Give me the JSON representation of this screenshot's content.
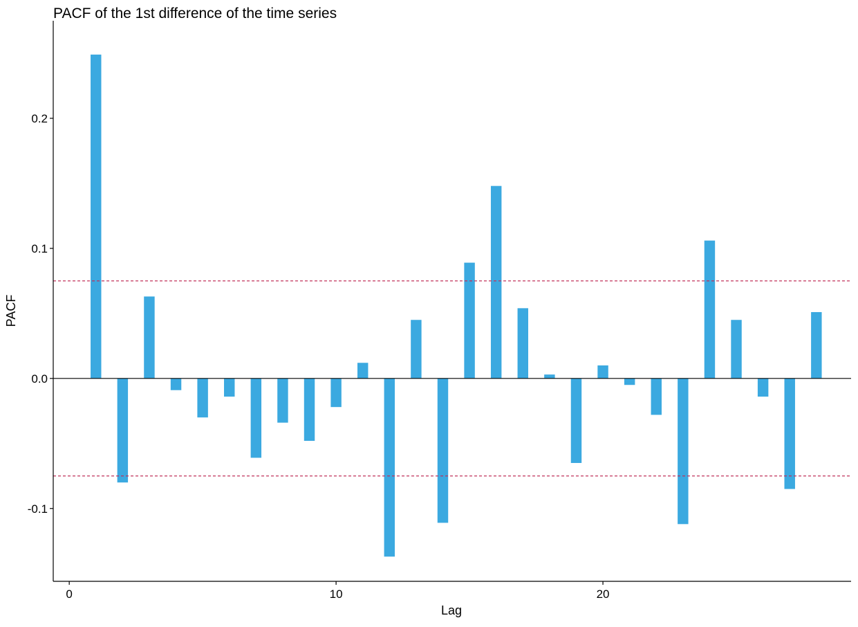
{
  "chart_data": {
    "type": "bar",
    "title": "PACF of the 1st difference of the time series",
    "xlabel": "Lag",
    "ylabel": "PACF",
    "x": [
      1,
      2,
      3,
      4,
      5,
      6,
      7,
      8,
      9,
      10,
      11,
      12,
      13,
      14,
      15,
      16,
      17,
      18,
      19,
      20,
      21,
      22,
      23,
      24,
      25,
      26,
      27,
      28
    ],
    "values": [
      0.249,
      -0.08,
      0.063,
      -0.009,
      -0.03,
      -0.014,
      -0.061,
      -0.034,
      -0.048,
      -0.022,
      0.012,
      -0.137,
      0.045,
      -0.111,
      0.089,
      0.148,
      0.054,
      0.003,
      -0.065,
      0.01,
      -0.005,
      -0.028,
      -0.112,
      0.106,
      0.045,
      -0.014,
      -0.085,
      0.051
    ],
    "xlim": [
      -0.6,
      29.3
    ],
    "ylim": [
      -0.156,
      0.275
    ],
    "x_ticks": [
      0,
      10,
      20
    ],
    "x_tick_labels": [
      "0",
      "10",
      "20"
    ],
    "y_ticks": [
      -0.1,
      0.0,
      0.1,
      0.2
    ],
    "y_tick_labels": [
      "-0.1",
      "0.0",
      "0.1",
      "0.2"
    ],
    "confidence_bounds": [
      0.075,
      -0.075
    ],
    "grid": false,
    "colors": {
      "bar": "#3BA9E0",
      "confidence_line": "#C0305A",
      "zero_line": "#000000",
      "axis": "#000000"
    }
  }
}
